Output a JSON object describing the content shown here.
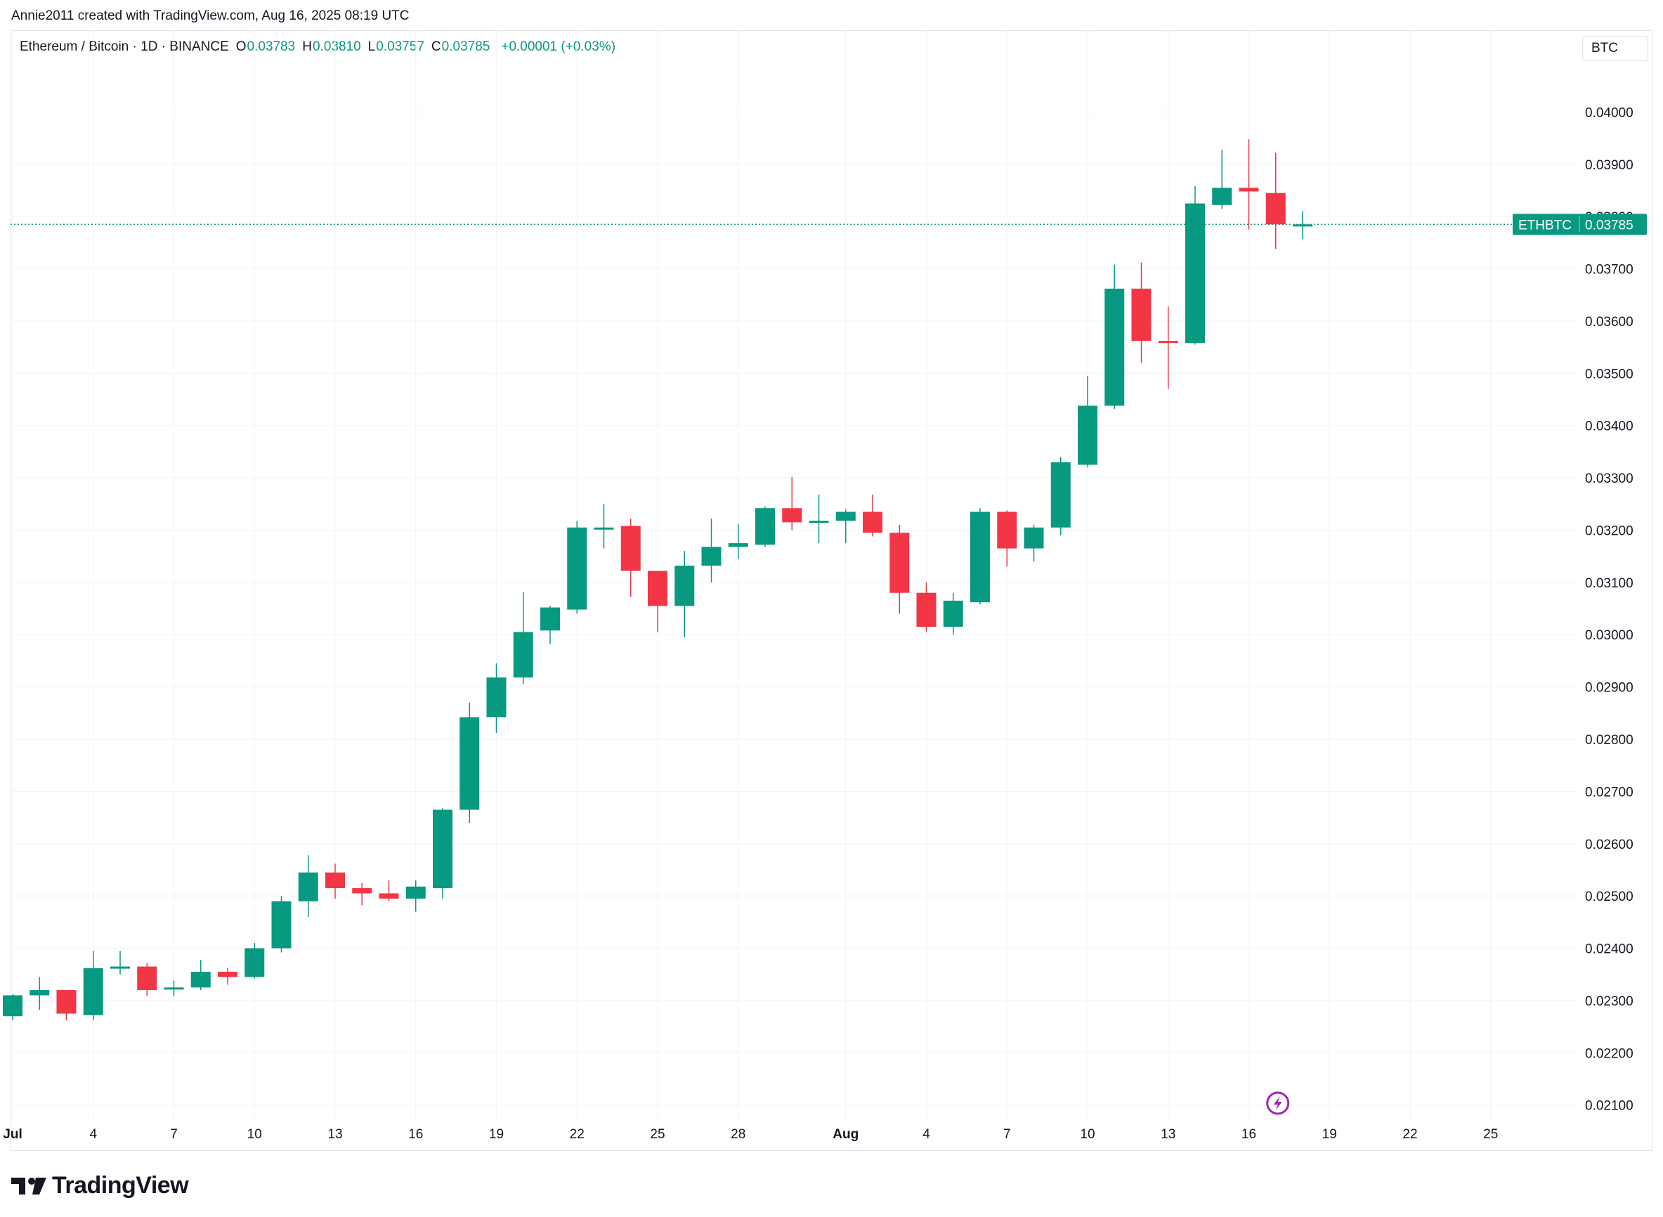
{
  "credit": "Annie2011 created with TradingView.com, Aug 16, 2025 08:19 UTC",
  "legend": {
    "symbol": "Ethereum / Bitcoin · 1D · BINANCE",
    "o_label": "O",
    "o_value": "0.03783",
    "h_label": "H",
    "h_value": "0.03810",
    "l_label": "L",
    "l_value": "0.03757",
    "c_label": "C",
    "c_value": "0.03785",
    "change": "+0.00001 (+0.03%)"
  },
  "currency_button": "BTC",
  "brand": "TradingView",
  "price_marker": {
    "ticker": "ETHBTC",
    "price": "0.03785",
    "value": 0.03785
  },
  "colors": {
    "up": "#089981",
    "down": "#f23645",
    "grid": "#f0f3fa",
    "text": "#131722"
  },
  "chart_data": {
    "type": "candlestick",
    "x_tick_labels": [
      "Jul",
      "4",
      "7",
      "10",
      "13",
      "16",
      "19",
      "22",
      "25",
      "28",
      "Aug",
      "4",
      "7",
      "10",
      "13",
      "16",
      "19",
      "22",
      "25"
    ],
    "x_tick_day_index": [
      0,
      3,
      6,
      9,
      12,
      15,
      18,
      21,
      24,
      27,
      31,
      34,
      37,
      40,
      43,
      46,
      49,
      52,
      55
    ],
    "y_ticks": [
      0.021,
      0.022,
      0.023,
      0.024,
      0.025,
      0.026,
      0.027,
      0.028,
      0.029,
      0.03,
      0.031,
      0.032,
      0.033,
      0.034,
      0.035,
      0.036,
      0.037,
      0.038,
      0.039,
      0.04
    ],
    "y_tick_labels": [
      "0.02100",
      "0.02200",
      "0.02300",
      "0.02400",
      "0.02500",
      "0.02600",
      "0.02700",
      "0.02800",
      "0.02900",
      "0.03000",
      "0.03100",
      "0.03200",
      "0.03300",
      "0.03400",
      "0.03500",
      "0.03600",
      "0.03700",
      "0.03800",
      "0.03900",
      "0.04000"
    ],
    "ylim": [
      0.0207,
      0.041
    ],
    "candles": [
      {
        "date": "Jun 30",
        "o": 0.0227,
        "h": 0.02312,
        "l": 0.02262,
        "c": 0.0231
      },
      {
        "date": "Jul 1",
        "o": 0.0231,
        "h": 0.02345,
        "l": 0.02282,
        "c": 0.0232
      },
      {
        "date": "Jul 2",
        "o": 0.0232,
        "h": 0.0232,
        "l": 0.02262,
        "c": 0.02275
      },
      {
        "date": "Jul 3",
        "o": 0.02272,
        "h": 0.02395,
        "l": 0.02262,
        "c": 0.02362
      },
      {
        "date": "Jul 4",
        "o": 0.02362,
        "h": 0.02395,
        "l": 0.0235,
        "c": 0.02365
      },
      {
        "date": "Jul 5",
        "o": 0.02365,
        "h": 0.02372,
        "l": 0.02308,
        "c": 0.0232
      },
      {
        "date": "Jul 6",
        "o": 0.02322,
        "h": 0.02338,
        "l": 0.02308,
        "c": 0.02325
      },
      {
        "date": "Jul 7",
        "o": 0.02325,
        "h": 0.02378,
        "l": 0.0232,
        "c": 0.02355
      },
      {
        "date": "Jul 8",
        "o": 0.02355,
        "h": 0.02362,
        "l": 0.0233,
        "c": 0.02345
      },
      {
        "date": "Jul 9",
        "o": 0.02345,
        "h": 0.0241,
        "l": 0.02342,
        "c": 0.024
      },
      {
        "date": "Jul 10",
        "o": 0.024,
        "h": 0.025,
        "l": 0.02392,
        "c": 0.0249
      },
      {
        "date": "Jul 11",
        "o": 0.0249,
        "h": 0.02578,
        "l": 0.0246,
        "c": 0.02545
      },
      {
        "date": "Jul 12",
        "o": 0.02545,
        "h": 0.02562,
        "l": 0.02495,
        "c": 0.02515
      },
      {
        "date": "Jul 13",
        "o": 0.02515,
        "h": 0.02525,
        "l": 0.02482,
        "c": 0.02505
      },
      {
        "date": "Jul 14",
        "o": 0.02505,
        "h": 0.0253,
        "l": 0.0249,
        "c": 0.02495
      },
      {
        "date": "Jul 15",
        "o": 0.02495,
        "h": 0.0253,
        "l": 0.0247,
        "c": 0.02518
      },
      {
        "date": "Jul 16",
        "o": 0.02515,
        "h": 0.02668,
        "l": 0.02495,
        "c": 0.02665
      },
      {
        "date": "Jul 17",
        "o": 0.02665,
        "h": 0.0287,
        "l": 0.0264,
        "c": 0.02842
      },
      {
        "date": "Jul 18",
        "o": 0.02842,
        "h": 0.02945,
        "l": 0.02812,
        "c": 0.02918
      },
      {
        "date": "Jul 19",
        "o": 0.02918,
        "h": 0.03082,
        "l": 0.02905,
        "c": 0.03005
      },
      {
        "date": "Jul 20",
        "o": 0.03008,
        "h": 0.03055,
        "l": 0.02982,
        "c": 0.03052
      },
      {
        "date": "Jul 21",
        "o": 0.03048,
        "h": 0.03218,
        "l": 0.0304,
        "c": 0.03205
      },
      {
        "date": "Jul 22",
        "o": 0.03205,
        "h": 0.0325,
        "l": 0.03165,
        "c": 0.03205
      },
      {
        "date": "Jul 23",
        "o": 0.03208,
        "h": 0.03222,
        "l": 0.03072,
        "c": 0.03122
      },
      {
        "date": "Jul 24",
        "o": 0.03122,
        "h": 0.03122,
        "l": 0.03005,
        "c": 0.03055
      },
      {
        "date": "Jul 25",
        "o": 0.03055,
        "h": 0.0316,
        "l": 0.02995,
        "c": 0.03132
      },
      {
        "date": "Jul 26",
        "o": 0.03132,
        "h": 0.03222,
        "l": 0.031,
        "c": 0.03168
      },
      {
        "date": "Jul 27",
        "o": 0.03168,
        "h": 0.03212,
        "l": 0.03145,
        "c": 0.03175
      },
      {
        "date": "Jul 28",
        "o": 0.03172,
        "h": 0.03245,
        "l": 0.03168,
        "c": 0.03242
      },
      {
        "date": "Jul 29",
        "o": 0.03242,
        "h": 0.03302,
        "l": 0.032,
        "c": 0.03215
      },
      {
        "date": "Jul 30",
        "o": 0.03215,
        "h": 0.03268,
        "l": 0.03175,
        "c": 0.03218
      },
      {
        "date": "Jul 31",
        "o": 0.03218,
        "h": 0.0324,
        "l": 0.03175,
        "c": 0.03235
      },
      {
        "date": "Aug 1",
        "o": 0.03235,
        "h": 0.03268,
        "l": 0.03188,
        "c": 0.03195
      },
      {
        "date": "Aug 2",
        "o": 0.03195,
        "h": 0.0321,
        "l": 0.0304,
        "c": 0.0308
      },
      {
        "date": "Aug 3",
        "o": 0.0308,
        "h": 0.031,
        "l": 0.03005,
        "c": 0.03015
      },
      {
        "date": "Aug 4",
        "o": 0.03015,
        "h": 0.0308,
        "l": 0.03,
        "c": 0.03065
      },
      {
        "date": "Aug 5",
        "o": 0.03062,
        "h": 0.03242,
        "l": 0.03058,
        "c": 0.03235
      },
      {
        "date": "Aug 6",
        "o": 0.03235,
        "h": 0.03238,
        "l": 0.0313,
        "c": 0.03165
      },
      {
        "date": "Aug 7",
        "o": 0.03165,
        "h": 0.0321,
        "l": 0.0314,
        "c": 0.03205
      },
      {
        "date": "Aug 8",
        "o": 0.03205,
        "h": 0.0334,
        "l": 0.0319,
        "c": 0.0333
      },
      {
        "date": "Aug 9",
        "o": 0.03325,
        "h": 0.03495,
        "l": 0.0332,
        "c": 0.03438
      },
      {
        "date": "Aug 10",
        "o": 0.03438,
        "h": 0.03708,
        "l": 0.03432,
        "c": 0.03662
      },
      {
        "date": "Aug 11",
        "o": 0.03662,
        "h": 0.03712,
        "l": 0.0352,
        "c": 0.03562
      },
      {
        "date": "Aug 12",
        "o": 0.03562,
        "h": 0.03628,
        "l": 0.0347,
        "c": 0.03558
      },
      {
        "date": "Aug 13",
        "o": 0.03558,
        "h": 0.03858,
        "l": 0.03555,
        "c": 0.03825
      },
      {
        "date": "Aug 14",
        "o": 0.03822,
        "h": 0.03928,
        "l": 0.03815,
        "c": 0.03855
      },
      {
        "date": "Aug 15",
        "o": 0.03855,
        "h": 0.03948,
        "l": 0.03775,
        "c": 0.03848
      },
      {
        "date": "Aug 16",
        "o": 0.03845,
        "h": 0.03922,
        "l": 0.03738,
        "c": 0.03785
      },
      {
        "date": "Aug 17",
        "o": 0.03783,
        "h": 0.0381,
        "l": 0.03757,
        "c": 0.03785
      }
    ]
  }
}
